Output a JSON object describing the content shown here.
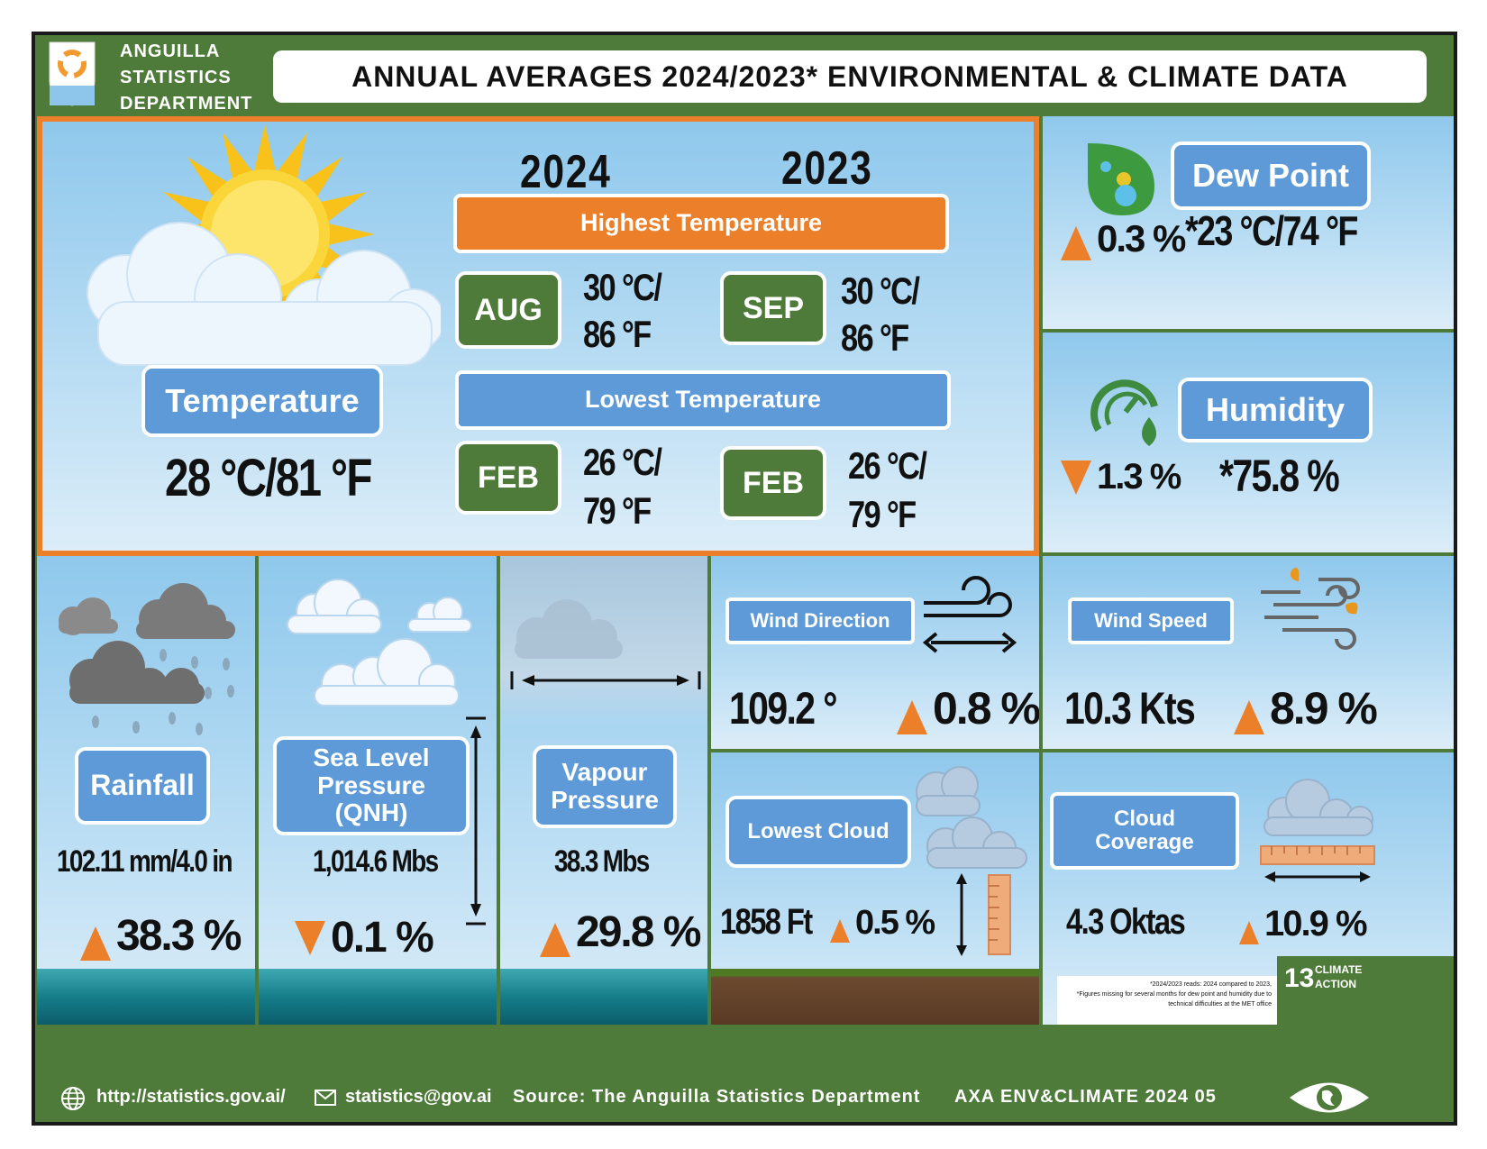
{
  "header": {
    "dept_line1": "ANGUILLA",
    "dept_line2": "STATISTICS",
    "dept_line3": "DEPARTMENT",
    "title": "ANNUAL AVERAGES 2024/2023* ENVIRONMENTAL & CLIMATE DATA"
  },
  "temperature": {
    "label": "Temperature",
    "value": "28 °C/81 °F",
    "year_2024": "2024",
    "year_2023": "2023",
    "highest_label": "Highest Temperature",
    "lowest_label": "Lowest Temperature",
    "high_2024": {
      "month": "AUG",
      "line1": "30 °C/",
      "line2": "86 °F"
    },
    "high_2023": {
      "month": "SEP",
      "line1": "30 °C/",
      "line2": "86 °F"
    },
    "low_2024": {
      "month": "FEB",
      "line1": "26 °C/",
      "line2": "79 °F"
    },
    "low_2023": {
      "month": "FEB",
      "line1": "26 °C/",
      "line2": "79 °F"
    }
  },
  "dew_point": {
    "label": "Dew Point",
    "change": "0.3 %",
    "direction": "up",
    "value": "*23 °C/74 °F"
  },
  "humidity": {
    "label": "Humidity",
    "change": "1.3 %",
    "direction": "down",
    "value": "*75.8 %"
  },
  "rainfall": {
    "label": "Rainfall",
    "value": "102.11 mm/4.0 in",
    "change": "38.3 %",
    "direction": "up"
  },
  "sea_level_pressure": {
    "label_line1": "Sea Level",
    "label_line2": "Pressure",
    "label_line3": "(QNH)",
    "value": "1,014.6 Mbs",
    "change": "0.1 %",
    "direction": "down"
  },
  "vapour_pressure": {
    "label_line1": "Vapour",
    "label_line2": "Pressure",
    "value": "38.3 Mbs",
    "change": "29.8 %",
    "direction": "up"
  },
  "wind_direction": {
    "label": "Wind Direction",
    "value": "109.2 °",
    "change": "0.8 %",
    "direction": "up"
  },
  "wind_speed": {
    "label": "Wind Speed",
    "value": "10.3 Kts",
    "change": "8.9 %",
    "direction": "up"
  },
  "lowest_cloud": {
    "label": "Lowest Cloud",
    "value": "1858 Ft",
    "change": "0.5 %",
    "direction": "up"
  },
  "cloud_coverage": {
    "label_line1": "Cloud",
    "label_line2": "Coverage",
    "value": "4.3 Oktas",
    "change": "10.9 %",
    "direction": "up"
  },
  "notes": {
    "line1": "*2024/2023 reads: 2024 compared to 2023,",
    "line2": "*Figures missing for several months for dew point and humidity due to",
    "line3": "technical difficulties at the MET office"
  },
  "sdg": {
    "number": "13",
    "line1": "CLIMATE",
    "line2": "ACTION"
  },
  "footer": {
    "website": "http://statistics.gov.ai/",
    "email": "statistics@gov.ai",
    "source": "Source: The Anguilla Statistics Department",
    "code": "AXA ENV&CLIMATE 2024 05"
  },
  "colors": {
    "green": "#4e7a3a",
    "orange": "#ec7f2a",
    "blue": "#5d9ad7"
  }
}
